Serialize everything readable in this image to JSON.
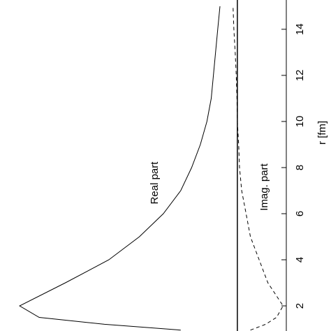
{
  "chart_data": {
    "type": "line",
    "orientation": "rotated",
    "x_label": "r [fm]",
    "x": [
      0.95,
      1.2,
      1.5,
      2,
      3,
      4,
      5,
      6,
      7,
      8,
      9,
      10,
      11,
      12,
      13,
      14,
      15
    ],
    "series": [
      {
        "name": "Real part",
        "color": "#000000",
        "dash": "solid",
        "values": [
          -0.26,
          -0.61,
          -0.91,
          -1.0,
          -0.79,
          -0.59,
          -0.45,
          -0.34,
          -0.26,
          -0.21,
          -0.17,
          -0.14,
          -0.12,
          -0.11,
          -0.1,
          -0.09,
          -0.08
        ]
      },
      {
        "name": "Imag. part",
        "color": "#000000",
        "dash": "dashed",
        "values": [
          0.06,
          0.13,
          0.18,
          0.21,
          0.14,
          0.1,
          0.06,
          0.04,
          0.02,
          0.01,
          0.006,
          0,
          -0.002,
          -0.005,
          -0.01,
          -0.016,
          -0.02
        ]
      }
    ],
    "xlim": [
      0.91,
      15.27
    ],
    "xticks": [
      2,
      4,
      6,
      8,
      10,
      12,
      14
    ],
    "ylim": [
      -1.09,
      0.43
    ]
  }
}
